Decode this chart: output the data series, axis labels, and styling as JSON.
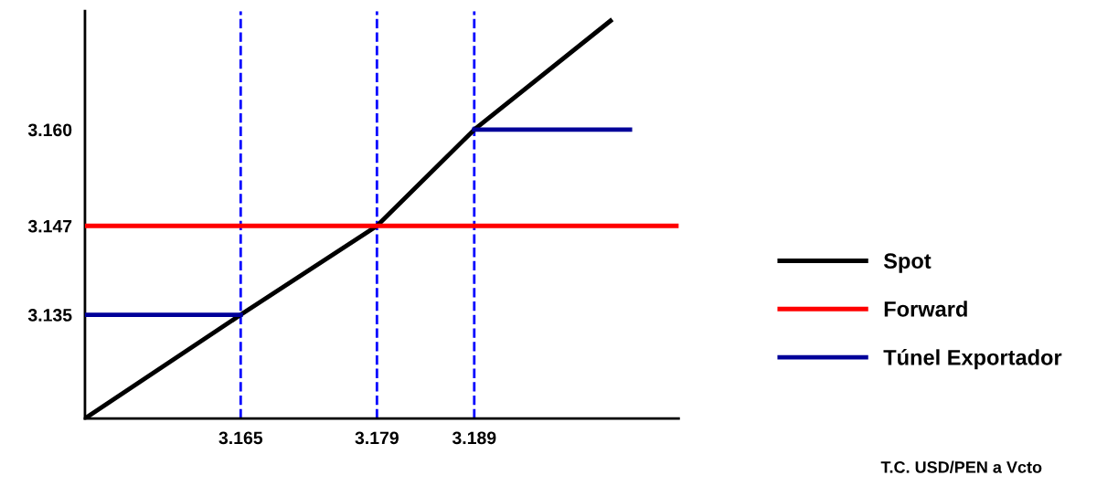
{
  "chart_data": {
    "type": "line",
    "annotations": [
      "T.C. USD/PEN a Vcto"
    ],
    "xlim": [
      3.149,
      3.21
    ],
    "ylim": [
      3.121,
      3.176
    ],
    "xticks": [
      3.165,
      3.179,
      3.189
    ],
    "yticks": [
      {
        "value": 3.135,
        "label": "3.135"
      },
      {
        "value": 3.147,
        "label": "3.147"
      },
      {
        "value": 3.16,
        "label": "3.160"
      }
    ],
    "series": [
      {
        "name": "Spot",
        "color": "#000000",
        "x": [
          3.149,
          3.165,
          3.179,
          3.189,
          3.203
        ],
        "values": [
          3.121,
          3.135,
          3.147,
          3.16,
          3.1747
        ]
      },
      {
        "name": "Forward",
        "color": "#ff0000",
        "x": [
          3.149,
          3.21
        ],
        "values": [
          3.147,
          3.147
        ]
      },
      {
        "name": "Túnel Exportador",
        "color": "#000099",
        "x": [
          3.149,
          3.165,
          3.177,
          3.189,
          3.205
        ],
        "values": [
          3.135,
          3.135,
          null,
          3.16,
          3.16
        ]
      }
    ],
    "ref_lines": [
      {
        "axis": "x",
        "value": 3.165,
        "color": "#0000ff",
        "line_style": "dashed"
      },
      {
        "axis": "x",
        "value": 3.179,
        "color": "#0000ff",
        "line_style": "dashed"
      },
      {
        "axis": "x",
        "value": 3.189,
        "color": "#0000ff",
        "line_style": "dashed"
      }
    ],
    "grid": false,
    "legend": "right",
    "marker": "none",
    "line_style": "solid"
  }
}
